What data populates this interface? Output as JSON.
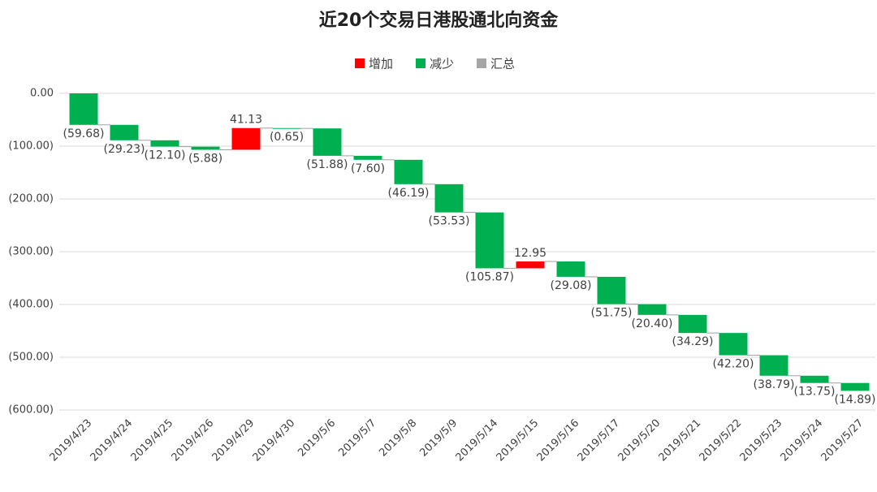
{
  "chart_data": {
    "type": "waterfall",
    "title": "近20个交易日港股通北向资金",
    "legend": [
      {
        "name": "增加",
        "color": "#ff0000"
      },
      {
        "name": "减少",
        "color": "#00b050"
      },
      {
        "name": "汇总",
        "color": "#a5a5a5"
      }
    ],
    "categories": [
      "2019/4/23",
      "2019/4/24",
      "2019/4/25",
      "2019/4/26",
      "2019/4/29",
      "2019/4/30",
      "2019/5/6",
      "2019/5/7",
      "2019/5/8",
      "2019/5/9",
      "2019/5/14",
      "2019/5/15",
      "2019/5/16",
      "2019/5/17",
      "2019/5/20",
      "2019/5/21",
      "2019/5/22",
      "2019/5/23",
      "2019/5/24",
      "2019/5/27"
    ],
    "values": [
      -59.68,
      -29.23,
      -12.1,
      -5.88,
      41.13,
      -0.65,
      -51.88,
      -7.6,
      -46.19,
      -53.53,
      -105.87,
      12.95,
      -29.08,
      -51.75,
      -20.4,
      -34.29,
      -42.2,
      -38.79,
      -13.75,
      -14.89
    ],
    "value_labels": [
      "(59.68)",
      "(29.23)",
      "(12.10)",
      "(5.88)",
      "41.13",
      "(0.65)",
      "(51.88)",
      "(7.60)",
      "(46.19)",
      "(53.53)",
      "(105.87)",
      "12.95",
      "(29.08)",
      "(51.75)",
      "(20.40)",
      "(34.29)",
      "(42.20)",
      "(38.79)",
      "(13.75)",
      "(14.89)"
    ],
    "ylim": [
      -600,
      0
    ],
    "yticks": [
      {
        "value": 0,
        "label": "0.00"
      },
      {
        "value": -100,
        "label": "(100.00)"
      },
      {
        "value": -200,
        "label": "(200.00)"
      },
      {
        "value": -300,
        "label": "(300.00)"
      },
      {
        "value": -400,
        "label": "(400.00)"
      },
      {
        "value": -500,
        "label": "(500.00)"
      },
      {
        "value": -600,
        "label": "(600.00)"
      }
    ],
    "grid": true
  }
}
